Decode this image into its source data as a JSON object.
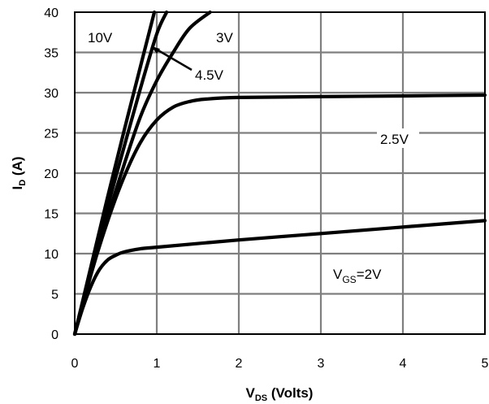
{
  "chart_data": {
    "type": "line",
    "xlabel": {
      "main": "V",
      "sub": "DS",
      "rest": " (Volts)"
    },
    "ylabel": {
      "main": "I",
      "sub": "D",
      "rest": " (A)"
    },
    "xlim": [
      0,
      5
    ],
    "ylim": [
      0,
      40
    ],
    "xticks": [
      "0",
      "1",
      "2",
      "3",
      "4",
      "5"
    ],
    "yticks": [
      "0",
      "5",
      "10",
      "15",
      "20",
      "25",
      "30",
      "35",
      "40"
    ],
    "grid": true,
    "series": [
      {
        "name": "10V",
        "x": [
          0,
          0.2,
          0.4,
          0.6,
          0.8,
          0.97
        ],
        "y": [
          0,
          8.5,
          17,
          25.2,
          33.2,
          40
        ]
      },
      {
        "name": "4.5V",
        "x": [
          0,
          0.2,
          0.4,
          0.6,
          0.8,
          1.0,
          1.12
        ],
        "y": [
          0,
          8,
          15.8,
          23.2,
          30.5,
          37.3,
          40
        ]
      },
      {
        "name": "3V",
        "x": [
          0,
          0.2,
          0.4,
          0.6,
          0.8,
          1.0,
          1.2,
          1.4,
          1.65
        ],
        "y": [
          0,
          7.5,
          14.5,
          21,
          27,
          31.5,
          35,
          38,
          40
        ]
      },
      {
        "name": "2.5V",
        "x": [
          0,
          0.2,
          0.4,
          0.6,
          0.8,
          1.0,
          1.2,
          1.4,
          1.6,
          2.0,
          3.0,
          4.0,
          5.0
        ],
        "y": [
          0,
          7.5,
          14,
          19.5,
          23.8,
          26.6,
          28.2,
          28.9,
          29.2,
          29.4,
          29.5,
          29.6,
          29.7
        ]
      },
      {
        "name": "2V",
        "x": [
          0,
          0.1,
          0.2,
          0.3,
          0.4,
          0.5,
          0.6,
          0.8,
          1.0,
          2.0,
          3.0,
          4.0,
          5.0
        ],
        "y": [
          0,
          3.3,
          6.0,
          8.0,
          9.2,
          9.8,
          10.2,
          10.6,
          10.8,
          11.7,
          12.5,
          13.3,
          14.1
        ]
      }
    ],
    "annotations": [
      {
        "id": "10v",
        "text": "10V"
      },
      {
        "id": "3v",
        "text": "3V"
      },
      {
        "id": "45v",
        "text": "4.5V"
      },
      {
        "id": "25v",
        "text": "2.5V"
      },
      {
        "id": "vgs",
        "main": "V",
        "sub": "GS",
        "rest": "=2V"
      }
    ]
  }
}
